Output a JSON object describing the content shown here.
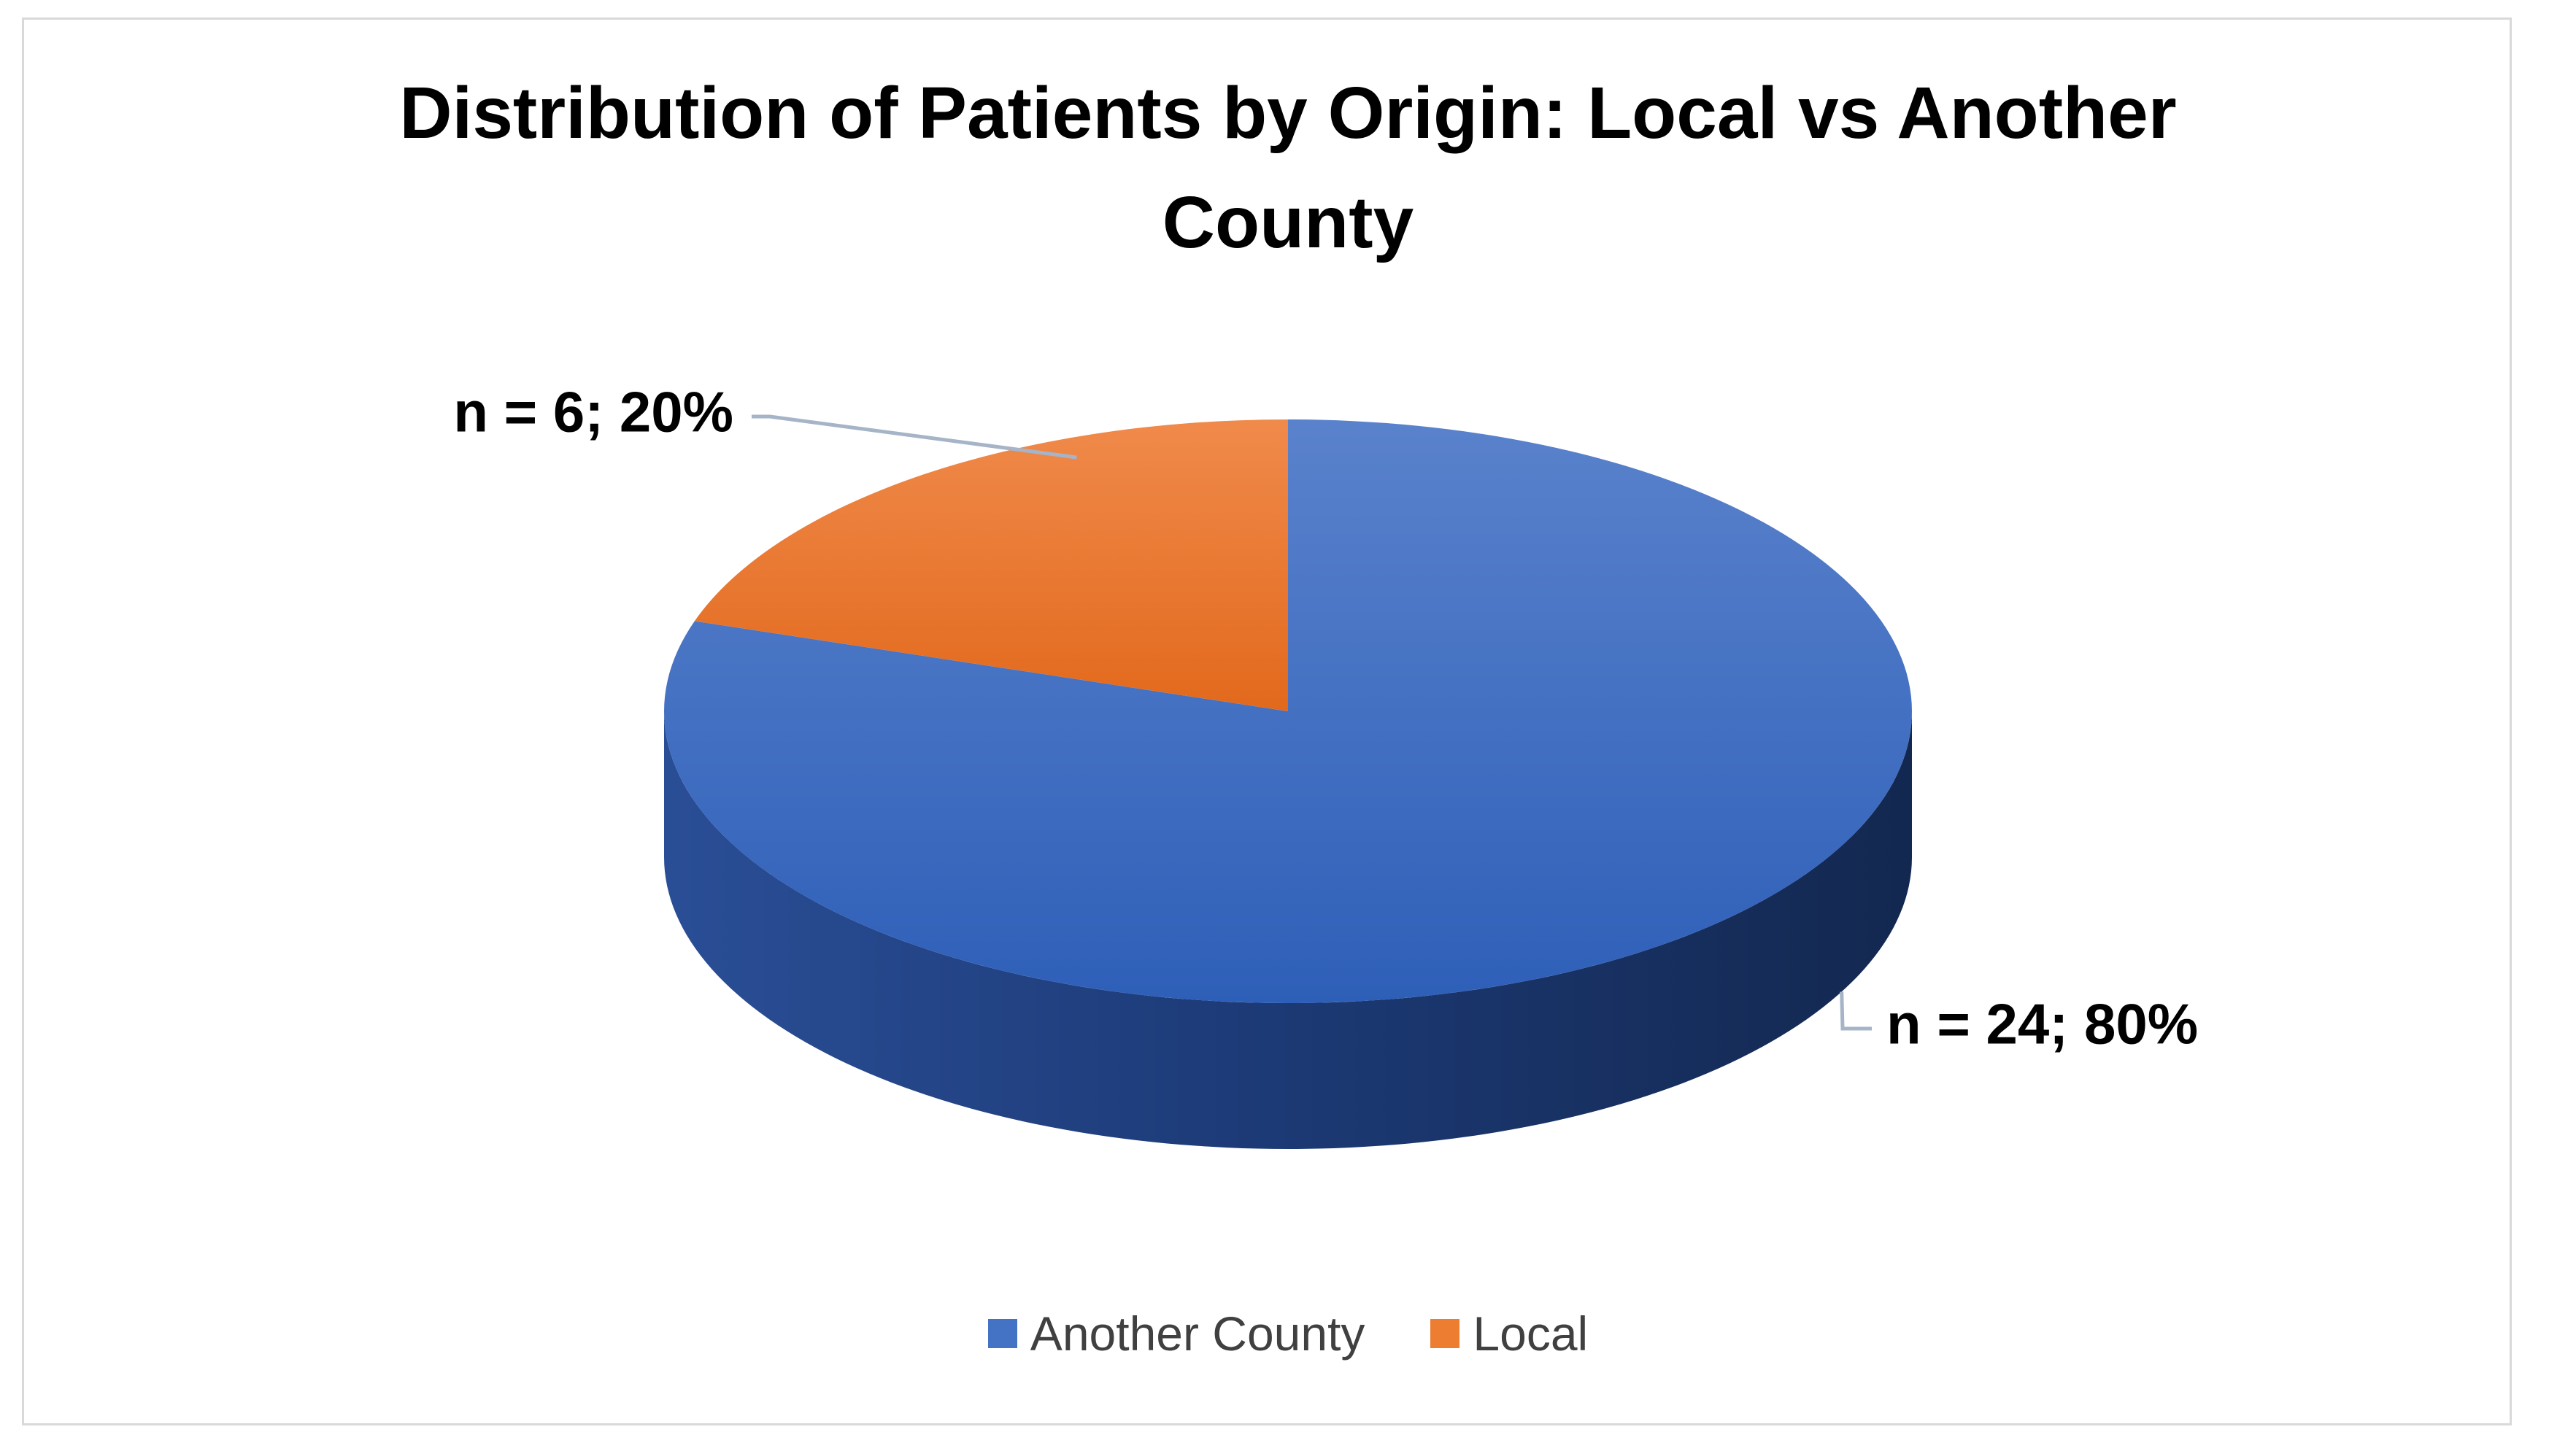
{
  "chart_data": {
    "type": "pie",
    "title": "Distribution of Patients by Origin: Local vs Another County",
    "three_d": true,
    "slices": [
      {
        "label": "Another County",
        "value": 24,
        "percent": 80,
        "data_label": "n = 24; 80%",
        "color": "#4472C4"
      },
      {
        "label": "Local",
        "value": 6,
        "percent": 20,
        "data_label": "n = 6; 20%",
        "color": "#ED7D31"
      }
    ],
    "legend": {
      "position": "bottom"
    }
  }
}
